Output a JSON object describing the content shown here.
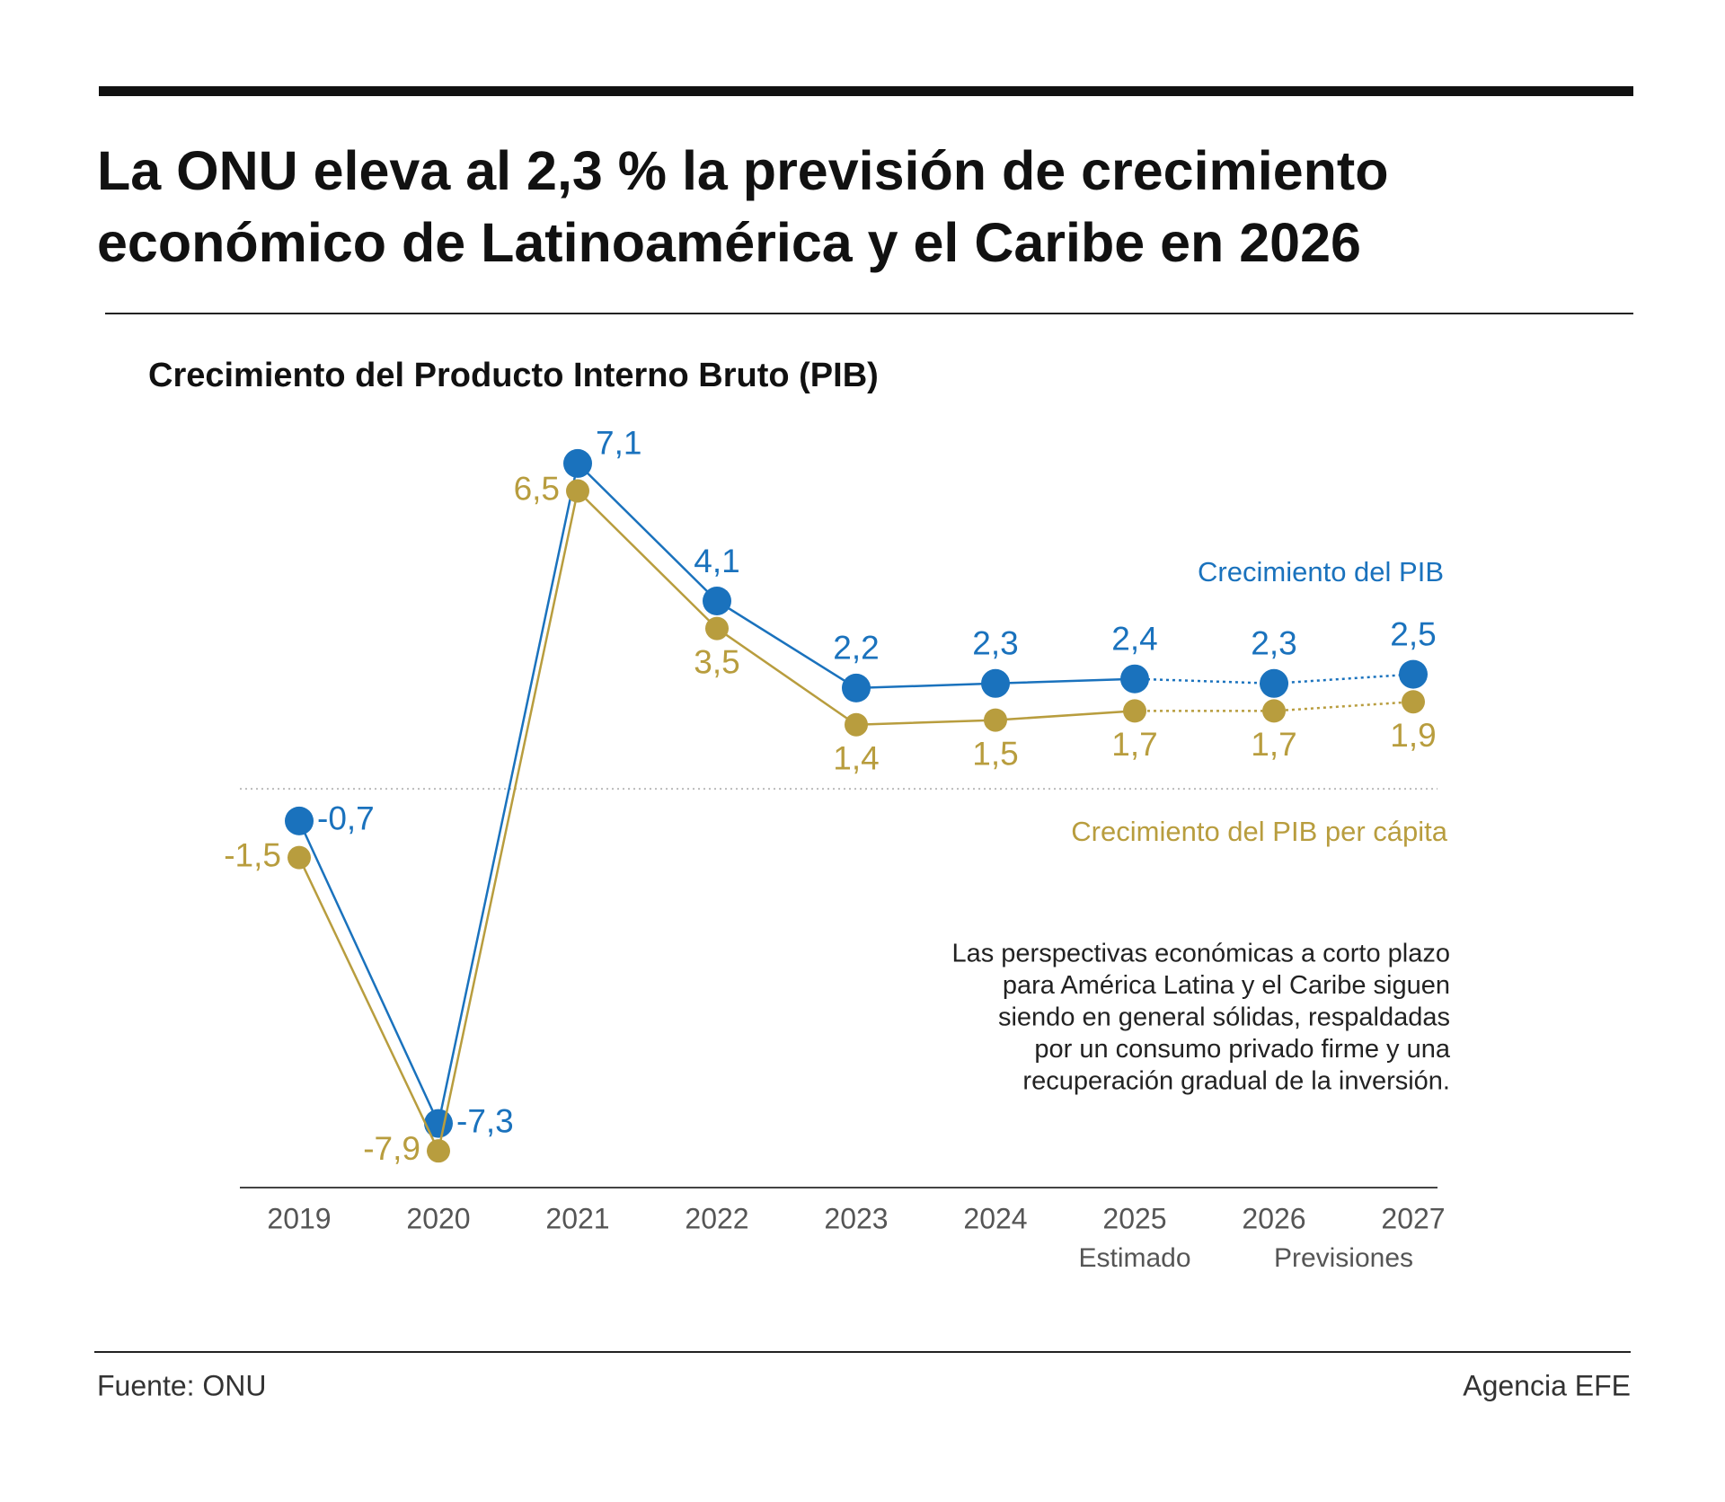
{
  "header": {
    "title": "La ONU eleva al 2,3 % la previsión de crecimiento económico de Latinoamérica y el Caribe en 2026"
  },
  "chart_data": {
    "type": "line",
    "title": "Crecimiento del Producto Interno Bruto (PIB)",
    "categories": [
      "2019",
      "2020",
      "2021",
      "2022",
      "2023",
      "2024",
      "2025",
      "2026",
      "2027"
    ],
    "series": [
      {
        "name": "Crecimiento del PIB",
        "color": "#1a72bd",
        "values": [
          -0.7,
          -7.3,
          7.1,
          4.1,
          2.2,
          2.3,
          2.4,
          2.3,
          2.5
        ],
        "value_labels": [
          "-0,7",
          "-7,3",
          "7,1",
          "4,1",
          "2,2",
          "2,3",
          "2,4",
          "2,3",
          "2,5"
        ]
      },
      {
        "name": "Crecimiento del PIB per cápita",
        "color": "#b89d3e",
        "values": [
          -1.5,
          -7.9,
          6.5,
          3.5,
          1.4,
          1.5,
          1.7,
          1.7,
          1.9
        ],
        "value_labels": [
          "-1,5",
          "-7,9",
          "6,5",
          "3,5",
          "1,4",
          "1,5",
          "1,7",
          "1,7",
          "1,9"
        ]
      }
    ],
    "ylim": [
      -8.7,
      8
    ],
    "reference_line": 0,
    "dashed_from": "2025",
    "annotations": [
      {
        "text": "Estimado",
        "categories": [
          "2025"
        ]
      },
      {
        "text": "Previsiones",
        "categories": [
          "2026",
          "2027"
        ]
      }
    ],
    "note_lines": [
      "Las perspectivas económicas a corto plazo",
      "para América Latina y el Caribe siguen",
      "siendo en general sólidas, respaldadas",
      "por un consumo privado firme y una",
      "recuperación gradual de la inversión."
    ]
  },
  "footer": {
    "source": "Fuente: ONU",
    "agency": "Agencia EFE"
  }
}
